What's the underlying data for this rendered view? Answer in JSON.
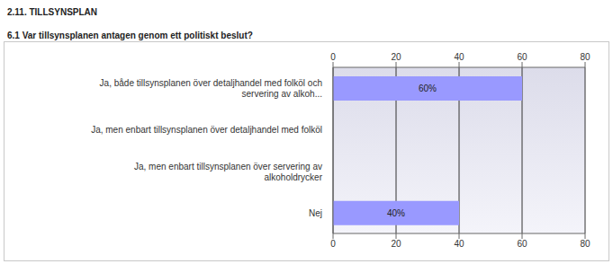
{
  "chart_data": {
    "type": "bar",
    "orientation": "horizontal",
    "title": "2.11. TILLSYNSPLAN",
    "subtitle": "6.1 Var tillsynsplanen antagen genom ett politiskt beslut?",
    "categories": [
      "Ja, både tillsynsplanen över detaljhandel med folköl och servering av alkoh...",
      "Ja, men enbart tillsynsplanen över detaljhandel med folköl",
      "Ja, men enbart tillsynsplanen över servering av alkoholdrycker",
      "Nej"
    ],
    "values": [
      60,
      0,
      0,
      40
    ],
    "value_labels": [
      "60%",
      null,
      null,
      "40%"
    ],
    "data_labels": true,
    "color": "#9999ff",
    "xlim": [
      0,
      80
    ],
    "xticks": [
      0,
      20,
      40,
      60,
      80
    ],
    "grid": true
  }
}
